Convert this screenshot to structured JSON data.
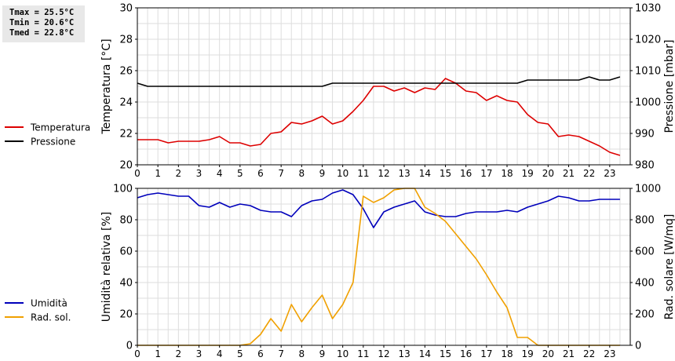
{
  "stats": {
    "tmax": "Tmax = 25.5°C",
    "tmin": "Tmin = 20.6°C",
    "tmed": "Tmed = 22.8°C"
  },
  "chart_data": [
    {
      "type": "line",
      "ylabel": "Temperatura [°C]",
      "y2label": "Pressione [mbar]",
      "ylim": [
        20,
        30
      ],
      "y2lim": [
        980,
        1030
      ],
      "yticks": [
        20,
        22,
        24,
        26,
        28,
        30
      ],
      "y2ticks": [
        980,
        990,
        1000,
        1010,
        1020,
        1030
      ],
      "xlim": [
        0,
        24
      ],
      "xticks": [
        "0",
        "1",
        "2",
        "3",
        "4",
        "5",
        "6",
        "7",
        "8",
        "9",
        "10",
        "11",
        "12",
        "13",
        "14",
        "15",
        "16",
        "17",
        "18",
        "19",
        "20",
        "21",
        "22",
        "23"
      ],
      "grid": true,
      "legend": [
        {
          "name": "Temperatura",
          "color": "#dd0000"
        },
        {
          "name": "Pressione",
          "color": "#000000"
        }
      ],
      "series": [
        {
          "name": "Temperatura",
          "axis": "left",
          "color": "#dd0000",
          "x": [
            0,
            0.5,
            1,
            1.5,
            2,
            2.5,
            3,
            3.5,
            4,
            4.5,
            5,
            5.5,
            6,
            6.5,
            7,
            7.5,
            8,
            8.5,
            9,
            9.5,
            10,
            10.5,
            11,
            11.5,
            12,
            12.5,
            13,
            13.5,
            14,
            14.5,
            15,
            15.5,
            16,
            16.5,
            17,
            17.5,
            18,
            18.5,
            19,
            19.5,
            20,
            20.5,
            21,
            21.5,
            22,
            22.5,
            23,
            23.5
          ],
          "y": [
            21.6,
            21.6,
            21.6,
            21.4,
            21.5,
            21.5,
            21.5,
            21.6,
            21.8,
            21.4,
            21.4,
            21.2,
            21.3,
            22.0,
            22.1,
            22.7,
            22.6,
            22.8,
            23.1,
            22.6,
            22.8,
            23.4,
            24.1,
            25.0,
            25.0,
            24.7,
            24.9,
            24.6,
            24.9,
            24.8,
            25.5,
            25.2,
            24.7,
            24.6,
            24.1,
            24.4,
            24.1,
            24.0,
            23.2,
            22.7,
            22.6,
            21.8,
            21.9,
            21.8,
            21.5,
            21.2,
            20.8,
            20.6
          ]
        },
        {
          "name": "Pressione",
          "axis": "right",
          "color": "#000000",
          "x": [
            0,
            0.5,
            1,
            1.5,
            2,
            2.5,
            3,
            3.5,
            4,
            4.5,
            5,
            5.5,
            6,
            6.5,
            7,
            7.5,
            8,
            8.5,
            9,
            9.5,
            10,
            10.5,
            11,
            11.5,
            12,
            12.5,
            13,
            13.5,
            14,
            14.5,
            15,
            15.5,
            16,
            16.5,
            17,
            17.5,
            18,
            18.5,
            19,
            19.5,
            20,
            20.5,
            21,
            21.5,
            22,
            22.5,
            23,
            23.5
          ],
          "y": [
            1006,
            1005,
            1005,
            1005,
            1005,
            1005,
            1005,
            1005,
            1005,
            1005,
            1005,
            1005,
            1005,
            1005,
            1005,
            1005,
            1005,
            1005,
            1005,
            1006,
            1006,
            1006,
            1006,
            1006,
            1006,
            1006,
            1006,
            1006,
            1006,
            1006,
            1006,
            1006,
            1006,
            1006,
            1006,
            1006,
            1006,
            1006,
            1007,
            1007,
            1007,
            1007,
            1007,
            1007,
            1008,
            1007,
            1007,
            1008
          ]
        }
      ]
    },
    {
      "type": "line",
      "ylabel": "Umidità relativa [%]",
      "y2label": "Rad. solare [W/mq]",
      "ylim": [
        0,
        100
      ],
      "y2lim": [
        0,
        1000
      ],
      "yticks": [
        0,
        20,
        40,
        60,
        80,
        100
      ],
      "y2ticks": [
        0,
        200,
        400,
        600,
        800,
        1000
      ],
      "xlim": [
        0,
        24
      ],
      "xticks": [
        "0",
        "1",
        "2",
        "3",
        "4",
        "5",
        "6",
        "7",
        "8",
        "9",
        "10",
        "11",
        "12",
        "13",
        "14",
        "15",
        "16",
        "17",
        "18",
        "19",
        "20",
        "21",
        "22",
        "23"
      ],
      "grid": true,
      "legend": [
        {
          "name": "Umidità",
          "color": "#0000bb"
        },
        {
          "name": "Rad. sol.",
          "color": "#f0a000"
        }
      ],
      "series": [
        {
          "name": "Umidità",
          "axis": "left",
          "color": "#0000bb",
          "x": [
            0,
            0.5,
            1,
            1.5,
            2,
            2.5,
            3,
            3.5,
            4,
            4.5,
            5,
            5.5,
            6,
            6.5,
            7,
            7.5,
            8,
            8.5,
            9,
            9.5,
            10,
            10.5,
            11,
            11.5,
            12,
            12.5,
            13,
            13.5,
            14,
            14.5,
            15,
            15.5,
            16,
            16.5,
            17,
            17.5,
            18,
            18.5,
            19,
            19.5,
            20,
            20.5,
            21,
            21.5,
            22,
            22.5,
            23,
            23.5
          ],
          "y": [
            94,
            96,
            97,
            96,
            95,
            95,
            89,
            88,
            91,
            88,
            90,
            89,
            86,
            85,
            85,
            82,
            89,
            92,
            93,
            97,
            99,
            96,
            87,
            75,
            85,
            88,
            90,
            92,
            85,
            83,
            82,
            82,
            84,
            85,
            85,
            85,
            86,
            85,
            88,
            90,
            92,
            95,
            94,
            92,
            92,
            93,
            93,
            93
          ]
        },
        {
          "name": "Rad. sol.",
          "axis": "right",
          "color": "#f0a000",
          "x": [
            0,
            0.5,
            1,
            1.5,
            2,
            2.5,
            3,
            3.5,
            4,
            4.5,
            5,
            5.5,
            6,
            6.5,
            7,
            7.5,
            8,
            8.5,
            9,
            9.5,
            10,
            10.5,
            11,
            11.5,
            12,
            12.5,
            13,
            13.5,
            14,
            14.5,
            15,
            15.5,
            16,
            16.5,
            17,
            17.5,
            18,
            18.5,
            19,
            19.5,
            20,
            20.5,
            21,
            21.5,
            22,
            22.5,
            23,
            23.5
          ],
          "y": [
            0,
            0,
            0,
            0,
            0,
            0,
            0,
            0,
            0,
            0,
            0,
            10,
            70,
            170,
            90,
            260,
            150,
            240,
            320,
            170,
            260,
            400,
            950,
            910,
            940,
            990,
            1020,
            1000,
            880,
            840,
            790,
            710,
            630,
            550,
            450,
            340,
            240,
            50,
            50,
            0,
            0,
            0,
            0,
            0,
            0,
            0,
            0,
            0
          ]
        }
      ]
    }
  ]
}
